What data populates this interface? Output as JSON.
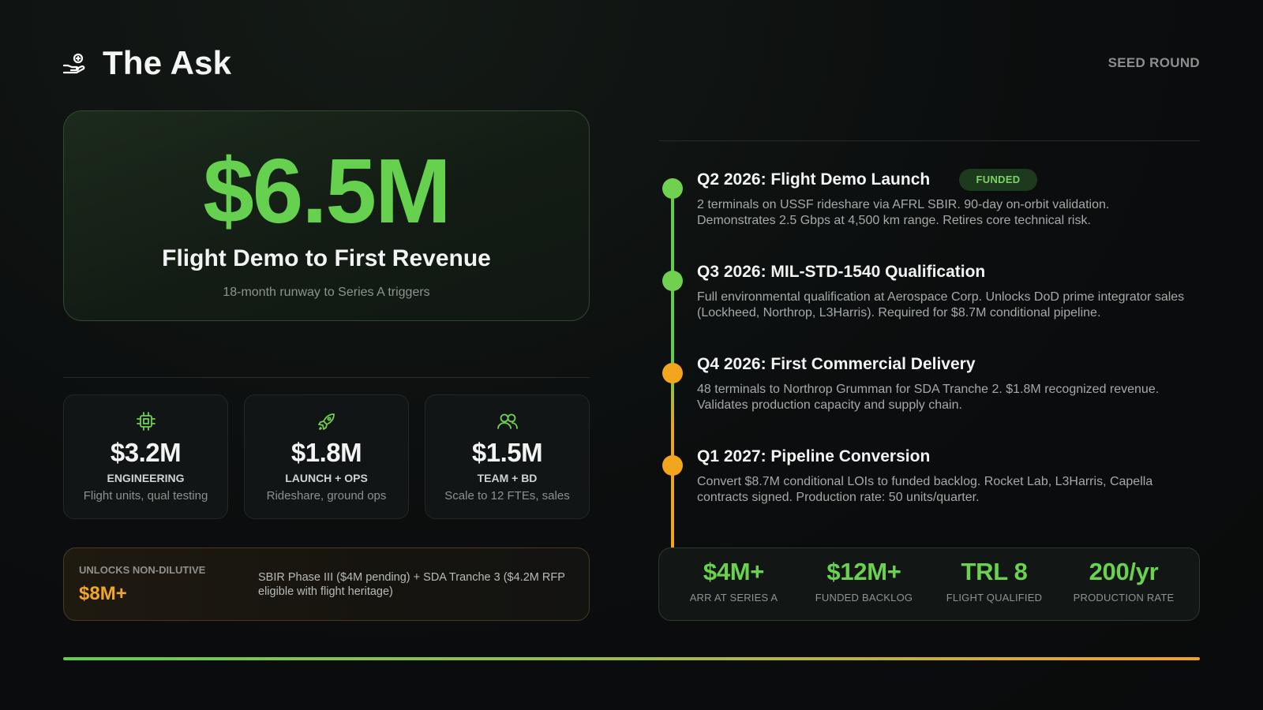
{
  "header": {
    "title": "The Ask",
    "round": "SEED ROUND",
    "icon": "hand-coin-icon"
  },
  "hero": {
    "amount": "$6.5M",
    "subtitle": "Flight Demo to First Revenue",
    "note": "18-month runway to Series A triggers"
  },
  "allocations": [
    {
      "icon": "chip-icon",
      "value": "$3.2M",
      "label": "ENGINEERING",
      "desc": "Flight units, qual testing"
    },
    {
      "icon": "rocket-icon",
      "value": "$1.8M",
      "label": "LAUNCH + OPS",
      "desc": "Rideshare, ground ops"
    },
    {
      "icon": "users-icon",
      "value": "$1.5M",
      "label": "TEAM + BD",
      "desc": "Scale to 12 FTEs, sales"
    }
  ],
  "non_dilutive": {
    "label": "UNLOCKS NON-DILUTIVE",
    "value": "$8M+",
    "text": "SBIR Phase III ($4M pending) + SDA Tranche 3 ($4.2M RFP eligible with flight heritage)"
  },
  "timeline": [
    {
      "title": "Q2 2026: Flight Demo Launch",
      "badge": "FUNDED",
      "desc": "2 terminals on USSF rideshare via AFRL SBIR. 90-day on-orbit validation. Demonstrates 2.5 Gbps at 4,500 km range. Retires core technical risk.",
      "color": "#6fd14f"
    },
    {
      "title": "Q3 2026: MIL-STD-1540 Qualification",
      "desc": "Full environmental qualification at Aerospace Corp. Unlocks DoD prime integrator sales (Lockheed, Northrop, L3Harris). Required for $8.7M conditional pipeline.",
      "color": "#6fd14f"
    },
    {
      "title": "Q4 2026: First Commercial Delivery",
      "desc": "48 terminals to Northrop Grumman for SDA Tranche 2. $1.8M recognized revenue. Validates production capacity and supply chain.",
      "color": "#f3a51e"
    },
    {
      "title": "Q1 2027: Pipeline Conversion",
      "desc": "Convert $8.7M conditional LOIs to funded backlog. Rocket Lab, L3Harris, Capella contracts signed. Production rate: 50 units/quarter.",
      "color": "#f3a51e"
    }
  ],
  "metrics": [
    {
      "value": "$4M+",
      "label": "ARR AT SERIES A"
    },
    {
      "value": "$12M+",
      "label": "FUNDED BACKLOG"
    },
    {
      "value": "TRL 8",
      "label": "FLIGHT QUALIFIED"
    },
    {
      "value": "200/yr",
      "label": "PRODUCTION RATE"
    }
  ],
  "colors": {
    "accent_green": "#66d04f",
    "accent_orange": "#f0a52c",
    "background": "#0b0d0e"
  }
}
